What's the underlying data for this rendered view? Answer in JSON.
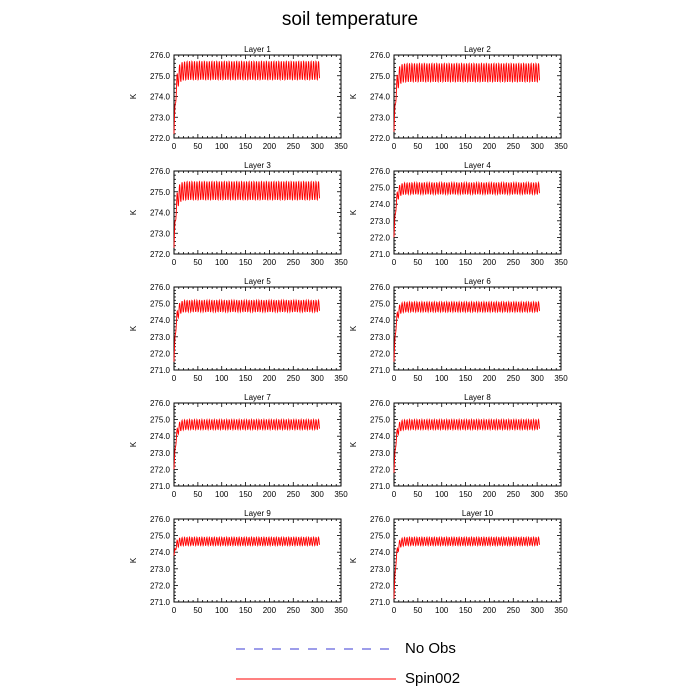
{
  "page": {
    "title": "soil temperature"
  },
  "legend": {
    "entries": [
      {
        "label": "No Obs",
        "color": "#3b3bd6",
        "style": "dashed"
      },
      {
        "label": "Spin002",
        "color": "#ff0000",
        "style": "solid"
      }
    ]
  },
  "chart_data": [
    {
      "type": "line",
      "title": "Layer 1",
      "ylabel": "K",
      "xlim": [
        0,
        350
      ],
      "ylim": [
        272.0,
        276.0
      ],
      "xticks": [
        0,
        50,
        100,
        150,
        200,
        250,
        300,
        350
      ],
      "yticks": [
        "272.0",
        "273.0",
        "274.0",
        "275.0",
        "276.0"
      ],
      "series": [
        {
          "name": "Spin002",
          "color": "#ff0000",
          "x_range": [
            0,
            305
          ],
          "start": 272.2,
          "cycle_low": 274.8,
          "cycle_high": 275.7
        }
      ]
    },
    {
      "type": "line",
      "title": "Layer 2",
      "ylabel": "K",
      "xlim": [
        0,
        350
      ],
      "ylim": [
        272.0,
        276.0
      ],
      "xticks": [
        0,
        50,
        100,
        150,
        200,
        250,
        300,
        350
      ],
      "yticks": [
        "272.0",
        "273.0",
        "274.0",
        "275.0",
        "276.0"
      ],
      "series": [
        {
          "name": "Spin002",
          "color": "#ff0000",
          "x_range": [
            0,
            305
          ],
          "start": 272.3,
          "cycle_low": 274.7,
          "cycle_high": 275.6
        }
      ]
    },
    {
      "type": "line",
      "title": "Layer 3",
      "ylabel": "K",
      "xlim": [
        0,
        350
      ],
      "ylim": [
        272.0,
        276.0
      ],
      "xticks": [
        0,
        50,
        100,
        150,
        200,
        250,
        300,
        350
      ],
      "yticks": [
        "272.0",
        "273.0",
        "274.0",
        "275.0",
        "276.0"
      ],
      "series": [
        {
          "name": "Spin002",
          "color": "#ff0000",
          "x_range": [
            0,
            305
          ],
          "start": 272.3,
          "cycle_low": 274.6,
          "cycle_high": 275.5
        }
      ]
    },
    {
      "type": "line",
      "title": "Layer 4",
      "ylabel": "K",
      "xlim": [
        0,
        350
      ],
      "ylim": [
        271.0,
        276.0
      ],
      "xticks": [
        0,
        50,
        100,
        150,
        200,
        250,
        300,
        350
      ],
      "yticks": [
        "271.0",
        "272.0",
        "273.0",
        "274.0",
        "275.0",
        "276.0"
      ],
      "series": [
        {
          "name": "Spin002",
          "color": "#ff0000",
          "x_range": [
            0,
            305
          ],
          "start": 272.0,
          "cycle_low": 274.6,
          "cycle_high": 275.3
        }
      ]
    },
    {
      "type": "line",
      "title": "Layer 5",
      "ylabel": "K",
      "xlim": [
        0,
        350
      ],
      "ylim": [
        271.0,
        276.0
      ],
      "xticks": [
        0,
        50,
        100,
        150,
        200,
        250,
        300,
        350
      ],
      "yticks": [
        "271.0",
        "272.0",
        "273.0",
        "274.0",
        "275.0",
        "276.0"
      ],
      "series": [
        {
          "name": "Spin002",
          "color": "#ff0000",
          "x_range": [
            0,
            305
          ],
          "start": 271.5,
          "cycle_low": 274.5,
          "cycle_high": 275.2
        }
      ]
    },
    {
      "type": "line",
      "title": "Layer 6",
      "ylabel": "K",
      "xlim": [
        0,
        350
      ],
      "ylim": [
        271.0,
        276.0
      ],
      "xticks": [
        0,
        50,
        100,
        150,
        200,
        250,
        300,
        350
      ],
      "yticks": [
        "271.0",
        "272.0",
        "273.0",
        "274.0",
        "275.0",
        "276.0"
      ],
      "series": [
        {
          "name": "Spin002",
          "color": "#ff0000",
          "x_range": [
            0,
            305
          ],
          "start": 271.5,
          "cycle_low": 274.5,
          "cycle_high": 275.1
        }
      ]
    },
    {
      "type": "line",
      "title": "Layer 7",
      "ylabel": "K",
      "xlim": [
        0,
        350
      ],
      "ylim": [
        271.0,
        276.0
      ],
      "xticks": [
        0,
        50,
        100,
        150,
        200,
        250,
        300,
        350
      ],
      "yticks": [
        "271.0",
        "272.0",
        "273.0",
        "274.0",
        "275.0",
        "276.0"
      ],
      "series": [
        {
          "name": "Spin002",
          "color": "#ff0000",
          "x_range": [
            0,
            305
          ],
          "start": 272.0,
          "cycle_low": 274.4,
          "cycle_high": 275.0
        }
      ]
    },
    {
      "type": "line",
      "title": "Layer 8",
      "ylabel": "K",
      "xlim": [
        0,
        350
      ],
      "ylim": [
        271.0,
        276.0
      ],
      "xticks": [
        0,
        50,
        100,
        150,
        200,
        250,
        300,
        350
      ],
      "yticks": [
        "271.0",
        "272.0",
        "273.0",
        "274.0",
        "275.0",
        "276.0"
      ],
      "series": [
        {
          "name": "Spin002",
          "color": "#ff0000",
          "x_range": [
            0,
            305
          ],
          "start": 271.8,
          "cycle_low": 274.4,
          "cycle_high": 275.0
        }
      ]
    },
    {
      "type": "line",
      "title": "Layer 9",
      "ylabel": "K",
      "xlim": [
        0,
        350
      ],
      "ylim": [
        271.0,
        276.0
      ],
      "xticks": [
        0,
        50,
        100,
        150,
        200,
        250,
        300,
        350
      ],
      "yticks": [
        "271.0",
        "272.0",
        "273.0",
        "274.0",
        "275.0",
        "276.0"
      ],
      "series": [
        {
          "name": "Spin002",
          "color": "#ff0000",
          "x_range": [
            0,
            305
          ],
          "start": 273.8,
          "cycle_low": 274.4,
          "cycle_high": 274.9
        }
      ]
    },
    {
      "type": "line",
      "title": "Layer 10",
      "ylabel": "K",
      "xlim": [
        0,
        350
      ],
      "ylim": [
        271.0,
        276.0
      ],
      "xticks": [
        0,
        50,
        100,
        150,
        200,
        250,
        300,
        350
      ],
      "yticks": [
        "271.0",
        "272.0",
        "273.0",
        "274.0",
        "275.0",
        "276.0"
      ],
      "series": [
        {
          "name": "Spin002",
          "color": "#ff0000",
          "x_range": [
            0,
            305
          ],
          "start": 271.2,
          "cycle_low": 274.4,
          "cycle_high": 274.9
        }
      ]
    }
  ]
}
